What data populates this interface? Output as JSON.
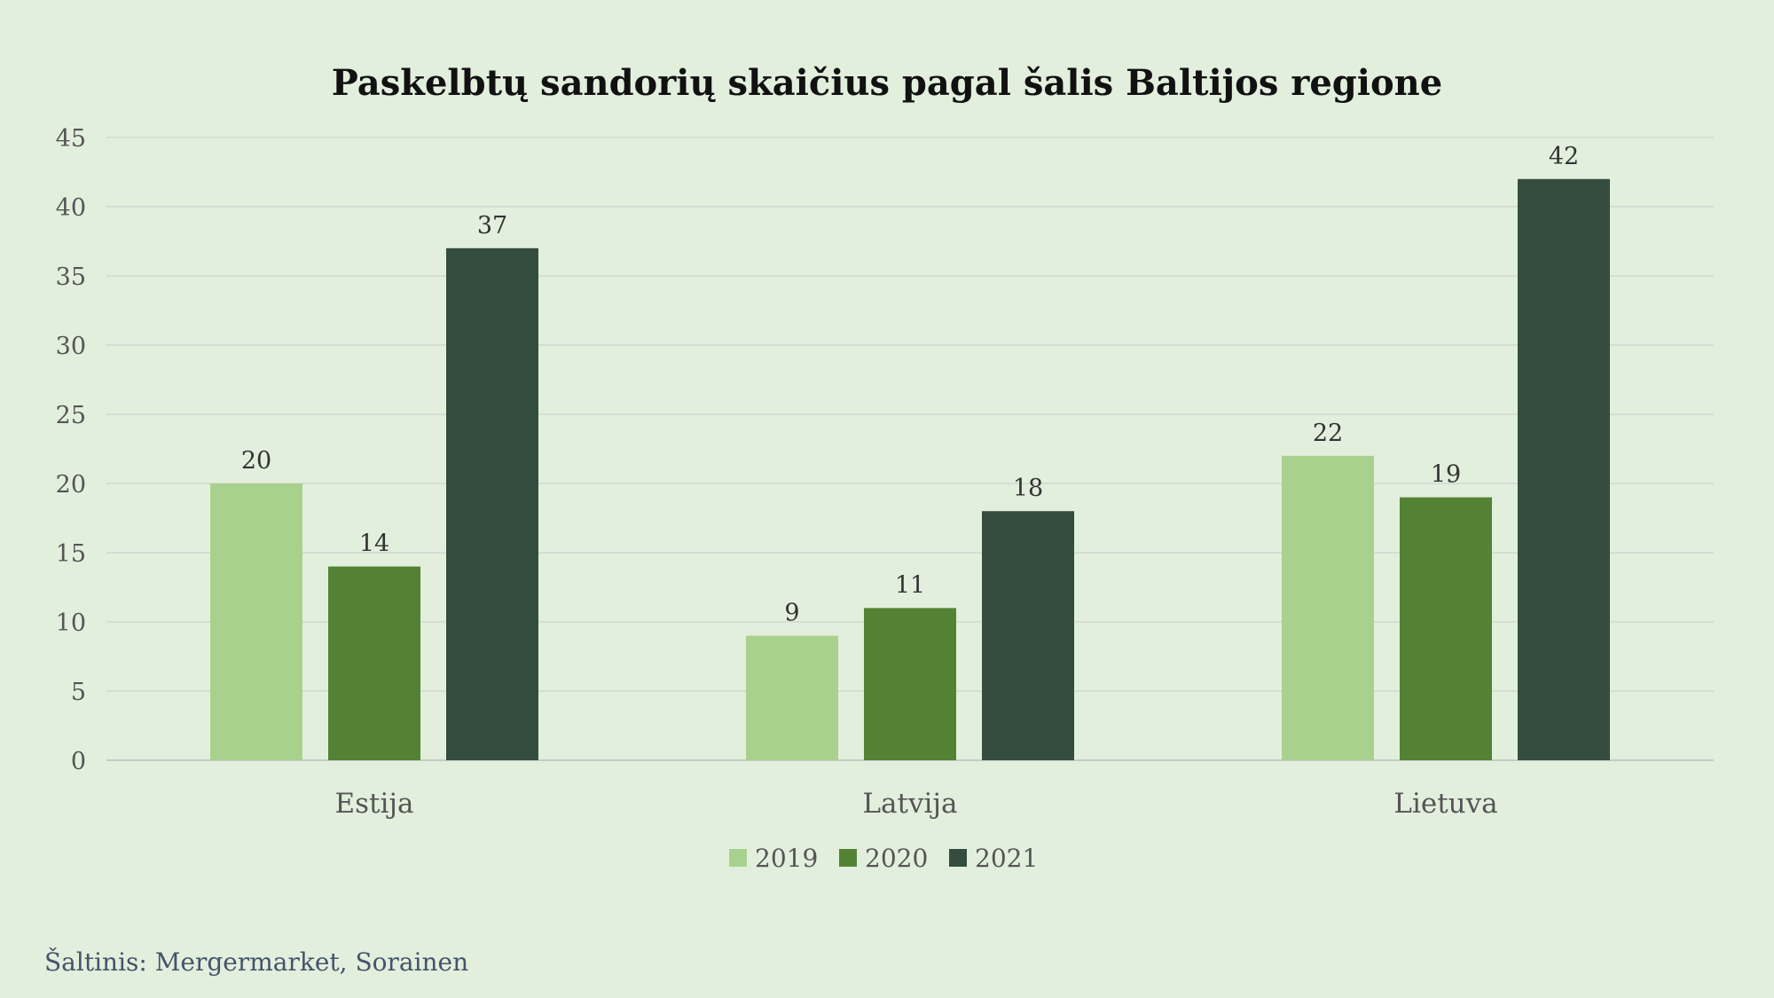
{
  "chart_data": {
    "type": "bar",
    "title": "Paskelbtų sandorių skaičius pagal šalis Baltijos regione",
    "categories": [
      "Estija",
      "Latvija",
      "Lietuva"
    ],
    "series": [
      {
        "name": "2019",
        "values": [
          20,
          9,
          22
        ],
        "color": "#a9d18e"
      },
      {
        "name": "2020",
        "values": [
          14,
          11,
          19
        ],
        "color": "#548235"
      },
      {
        "name": "2021",
        "values": [
          37,
          18,
          42
        ],
        "color": "#354d3e"
      }
    ],
    "ylim": [
      0,
      45
    ],
    "yticks": [
      0,
      5,
      10,
      15,
      20,
      25,
      30,
      35,
      40,
      45
    ],
    "grid": true,
    "legend": "bottom"
  },
  "source": "Šaltinis: Mergermarket, Sorainen"
}
